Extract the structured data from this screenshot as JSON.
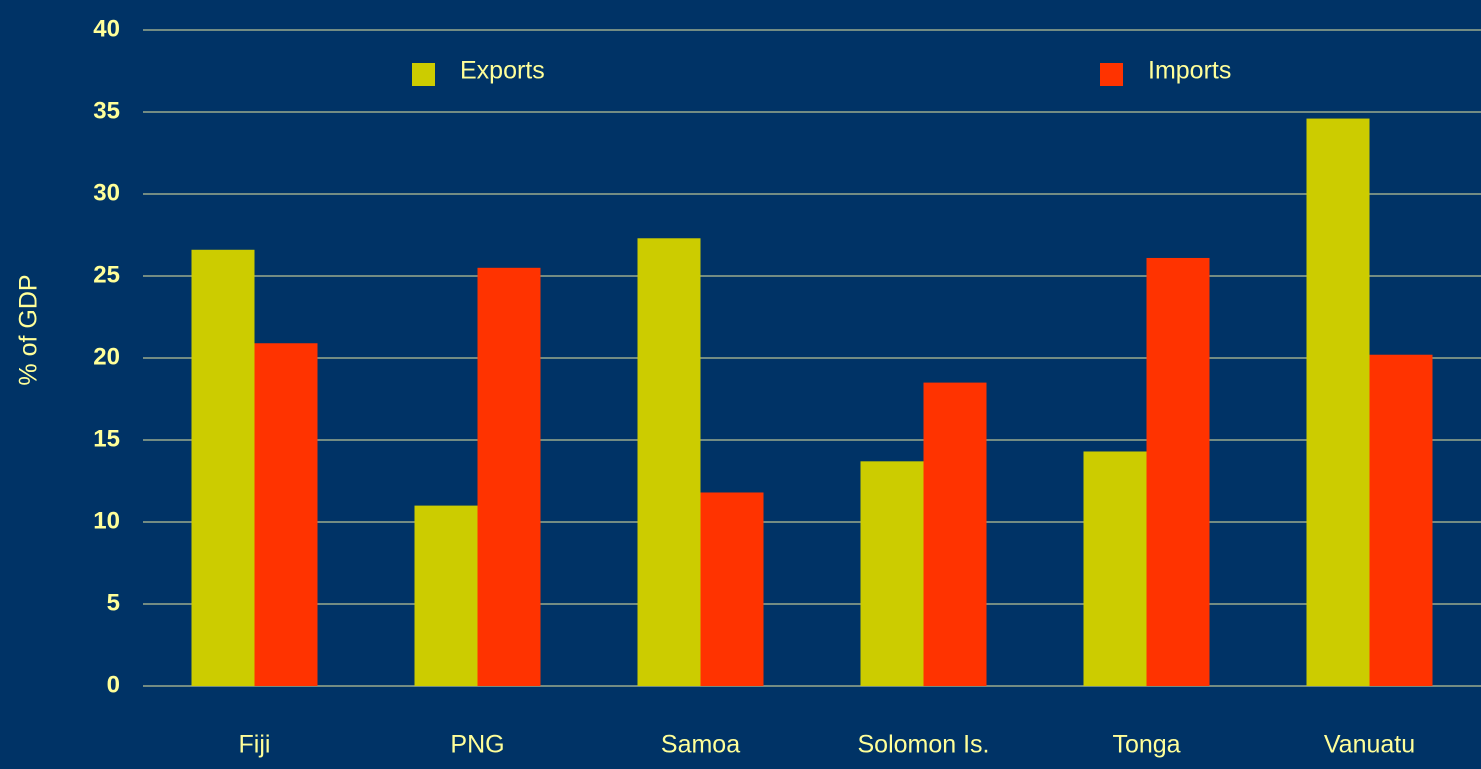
{
  "chart_data": {
    "type": "bar",
    "y_label": "% of GDP",
    "categories": [
      "Fiji",
      "PNG",
      "Samoa",
      "Solomon Is.",
      "Tonga",
      "Vanuatu"
    ],
    "series": [
      {
        "name": "Exports",
        "color": "#cccc00",
        "values": [
          26.6,
          11,
          27.3,
          13.7,
          14.3,
          34.6
        ]
      },
      {
        "name": "Imports",
        "color": "#ff3300",
        "values": [
          20.9,
          25.5,
          11.8,
          18.5,
          26.1,
          20.2
        ]
      }
    ],
    "ylim": [
      0,
      40
    ],
    "yticks": [
      0,
      5,
      10,
      15,
      20,
      25,
      30,
      35,
      40
    ],
    "grid": true,
    "legend": "top"
  }
}
